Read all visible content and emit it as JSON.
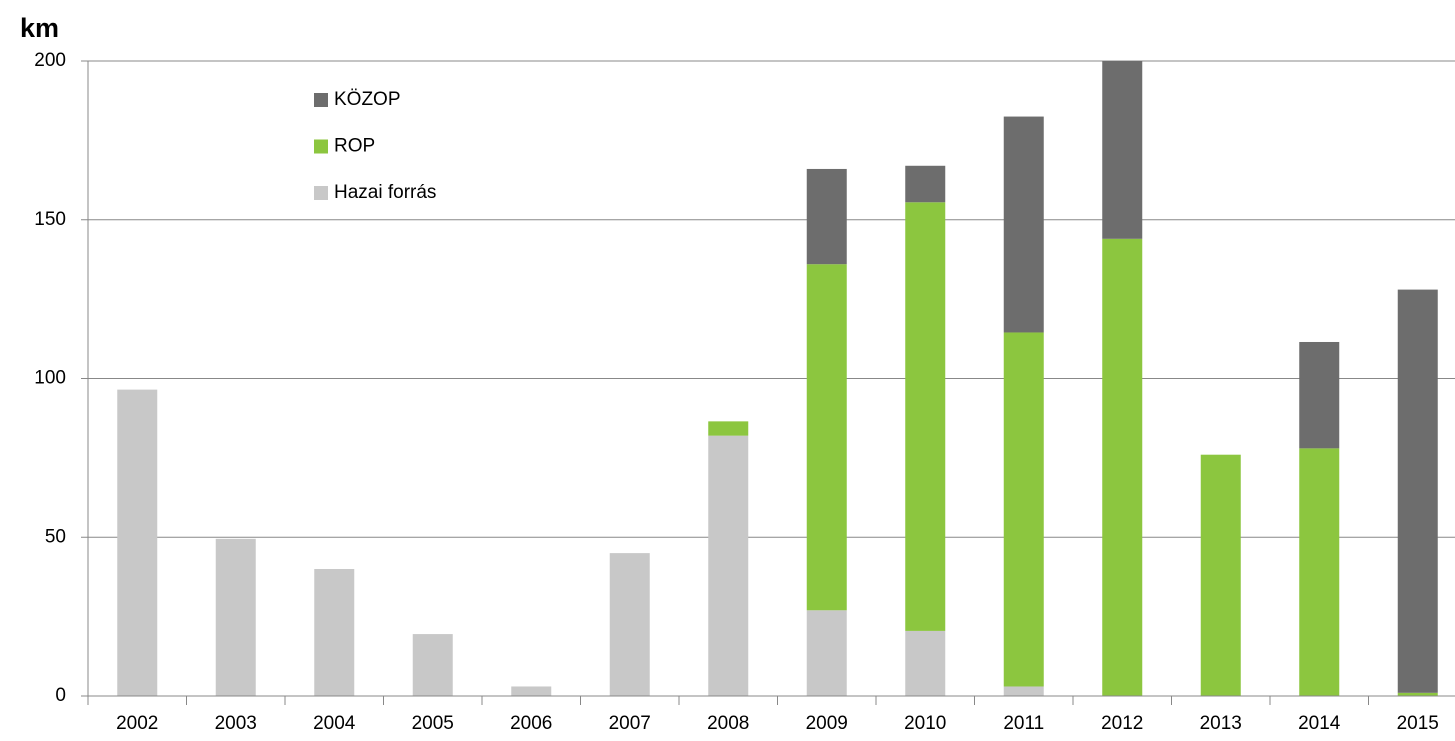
{
  "chart_data": {
    "type": "stacked_bar",
    "y_label": "km",
    "categories": [
      "2002",
      "2003",
      "2004",
      "2005",
      "2006",
      "2007",
      "2008",
      "2009",
      "2010",
      "2011",
      "2012",
      "2013",
      "2014",
      "2015"
    ],
    "series": [
      {
        "name": "Hazai forrás",
        "color": "#c8c8c8",
        "values": [
          96.5,
          49.5,
          40,
          19.5,
          3,
          45,
          82,
          27,
          20.5,
          3,
          0,
          0,
          0,
          0
        ]
      },
      {
        "name": "ROP",
        "color": "#8cc63f",
        "values": [
          0,
          0,
          0,
          0,
          0,
          0,
          4.5,
          109,
          135,
          111.5,
          144,
          76,
          78,
          1
        ]
      },
      {
        "name": "KÖZOP",
        "color": "#6d6d6d",
        "values": [
          0,
          0,
          0,
          0,
          0,
          0,
          0,
          30,
          11.5,
          68,
          56,
          0,
          33.5,
          127
        ]
      }
    ],
    "ylim": [
      0,
      200
    ],
    "yticks": [
      0,
      50,
      100,
      150,
      200
    ],
    "grid": true,
    "legend": "top-left"
  }
}
